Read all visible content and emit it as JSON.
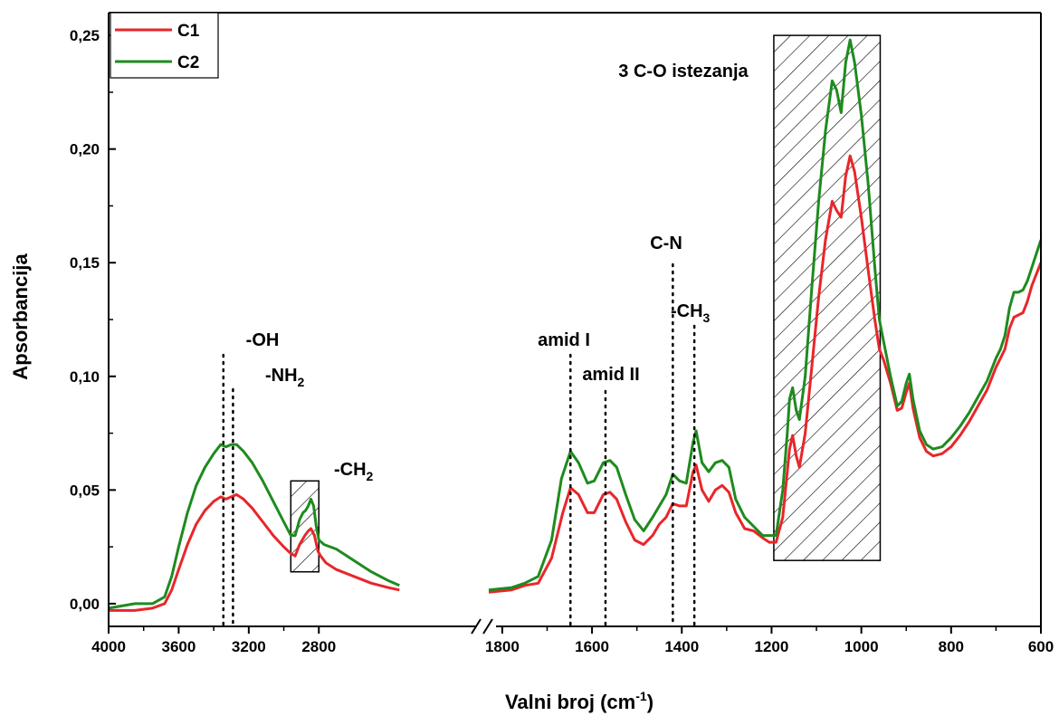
{
  "chart_data": {
    "type": "line",
    "title": "",
    "xlabel": "Valni broj (cm",
    "xlabel_sup": "-1",
    "xlabel_close": ")",
    "ylabel": "Apsorbancija",
    "x_reversed": true,
    "broken_x_axis": true,
    "xlim_segments": [
      [
        4000,
        1830
      ],
      [
        1830,
        600
      ]
    ],
    "ylim": [
      -0.01,
      0.26
    ],
    "xticks": [
      {
        "value": 4000,
        "label": "4000",
        "segment": 0
      },
      {
        "value": 3600,
        "label": "3600",
        "segment": 0
      },
      {
        "value": 3200,
        "label": "3200",
        "segment": 0
      },
      {
        "value": 2800,
        "label": "2800",
        "segment": 0
      },
      {
        "value": 1800,
        "label": "1800",
        "segment": 1
      },
      {
        "value": 1600,
        "label": "1600",
        "segment": 1
      },
      {
        "value": 1400,
        "label": "1400",
        "segment": 1
      },
      {
        "value": 1200,
        "label": "1200",
        "segment": 1
      },
      {
        "value": 1000,
        "label": "1000",
        "segment": 1
      },
      {
        "value": 800,
        "label": "800",
        "segment": 1
      },
      {
        "value": 600,
        "label": "600",
        "segment": 1
      }
    ],
    "yticks": [
      {
        "value": 0.0,
        "label": "0,00"
      },
      {
        "value": 0.05,
        "label": "0,05"
      },
      {
        "value": 0.1,
        "label": "0,10"
      },
      {
        "value": 0.15,
        "label": "0,15"
      },
      {
        "value": 0.2,
        "label": "0,20"
      },
      {
        "value": 0.25,
        "label": "0,25"
      }
    ],
    "grid": false,
    "legend_position": "top-left",
    "series": [
      {
        "name": "C1",
        "color": "#e8262a",
        "segments": [
          [
            [
              4000,
              -0.003
            ],
            [
              3850,
              -0.003
            ],
            [
              3750,
              -0.002
            ],
            [
              3680,
              0.0
            ],
            [
              3640,
              0.006
            ],
            [
              3600,
              0.015
            ],
            [
              3550,
              0.026
            ],
            [
              3500,
              0.035
            ],
            [
              3450,
              0.041
            ],
            [
              3400,
              0.045
            ],
            [
              3360,
              0.047
            ],
            [
              3330,
              0.046
            ],
            [
              3300,
              0.047
            ],
            [
              3270,
              0.048
            ],
            [
              3230,
              0.046
            ],
            [
              3180,
              0.042
            ],
            [
              3120,
              0.036
            ],
            [
              3060,
              0.03
            ],
            [
              3000,
              0.025
            ],
            [
              2960,
              0.022
            ],
            [
              2935,
              0.021
            ],
            [
              2910,
              0.026
            ],
            [
              2880,
              0.03
            ],
            [
              2860,
              0.032
            ],
            [
              2845,
              0.033
            ],
            [
              2825,
              0.03
            ],
            [
              2805,
              0.023
            ],
            [
              2790,
              0.021
            ],
            [
              2760,
              0.018
            ],
            [
              2700,
              0.015
            ],
            [
              2600,
              0.012
            ],
            [
              2500,
              0.009
            ],
            [
              2400,
              0.007
            ],
            [
              2340,
              0.006
            ]
          ],
          [
            [
              1830,
              0.005
            ],
            [
              1780,
              0.006
            ],
            [
              1750,
              0.008
            ],
            [
              1720,
              0.009
            ],
            [
              1690,
              0.02
            ],
            [
              1665,
              0.04
            ],
            [
              1648,
              0.051
            ],
            [
              1630,
              0.048
            ],
            [
              1610,
              0.04
            ],
            [
              1595,
              0.04
            ],
            [
              1575,
              0.048
            ],
            [
              1560,
              0.049
            ],
            [
              1545,
              0.046
            ],
            [
              1525,
              0.036
            ],
            [
              1505,
              0.028
            ],
            [
              1485,
              0.026
            ],
            [
              1465,
              0.03
            ],
            [
              1450,
              0.035
            ],
            [
              1435,
              0.038
            ],
            [
              1420,
              0.044
            ],
            [
              1405,
              0.043
            ],
            [
              1390,
              0.043
            ],
            [
              1375,
              0.058
            ],
            [
              1368,
              0.061
            ],
            [
              1355,
              0.05
            ],
            [
              1340,
              0.045
            ],
            [
              1325,
              0.05
            ],
            [
              1310,
              0.052
            ],
            [
              1295,
              0.049
            ],
            [
              1280,
              0.04
            ],
            [
              1260,
              0.033
            ],
            [
              1240,
              0.032
            ],
            [
              1220,
              0.029
            ],
            [
              1205,
              0.027
            ],
            [
              1190,
              0.027
            ],
            [
              1175,
              0.038
            ],
            [
              1165,
              0.058
            ],
            [
              1160,
              0.068
            ],
            [
              1153,
              0.074
            ],
            [
              1145,
              0.065
            ],
            [
              1138,
              0.06
            ],
            [
              1125,
              0.075
            ],
            [
              1110,
              0.105
            ],
            [
              1095,
              0.135
            ],
            [
              1080,
              0.16
            ],
            [
              1065,
              0.177
            ],
            [
              1055,
              0.173
            ],
            [
              1045,
              0.17
            ],
            [
              1035,
              0.188
            ],
            [
              1025,
              0.197
            ],
            [
              1015,
              0.19
            ],
            [
              1000,
              0.17
            ],
            [
              985,
              0.147
            ],
            [
              970,
              0.125
            ],
            [
              960,
              0.112
            ],
            [
              950,
              0.107
            ],
            [
              935,
              0.097
            ],
            [
              920,
              0.085
            ],
            [
              910,
              0.086
            ],
            [
              900,
              0.093
            ],
            [
              893,
              0.097
            ],
            [
              885,
              0.086
            ],
            [
              870,
              0.073
            ],
            [
              855,
              0.067
            ],
            [
              840,
              0.065
            ],
            [
              820,
              0.066
            ],
            [
              800,
              0.069
            ],
            [
              780,
              0.074
            ],
            [
              760,
              0.08
            ],
            [
              740,
              0.087
            ],
            [
              720,
              0.094
            ],
            [
              700,
              0.104
            ],
            [
              690,
              0.108
            ],
            [
              680,
              0.112
            ],
            [
              670,
              0.121
            ],
            [
              660,
              0.126
            ],
            [
              650,
              0.127
            ],
            [
              640,
              0.128
            ],
            [
              630,
              0.133
            ],
            [
              620,
              0.14
            ],
            [
              610,
              0.145
            ],
            [
              600,
              0.15
            ]
          ]
        ]
      },
      {
        "name": "C2",
        "color": "#1e8b1e",
        "segments": [
          [
            [
              4000,
              -0.002
            ],
            [
              3850,
              0.0
            ],
            [
              3750,
              0.0
            ],
            [
              3680,
              0.003
            ],
            [
              3640,
              0.012
            ],
            [
              3600,
              0.025
            ],
            [
              3550,
              0.04
            ],
            [
              3500,
              0.052
            ],
            [
              3450,
              0.06
            ],
            [
              3400,
              0.066
            ],
            [
              3360,
              0.07
            ],
            [
              3330,
              0.069
            ],
            [
              3300,
              0.07
            ],
            [
              3270,
              0.07
            ],
            [
              3230,
              0.067
            ],
            [
              3180,
              0.062
            ],
            [
              3120,
              0.054
            ],
            [
              3060,
              0.045
            ],
            [
              3000,
              0.036
            ],
            [
              2960,
              0.03
            ],
            [
              2935,
              0.03
            ],
            [
              2910,
              0.037
            ],
            [
              2890,
              0.04
            ],
            [
              2875,
              0.041
            ],
            [
              2860,
              0.043
            ],
            [
              2845,
              0.046
            ],
            [
              2830,
              0.043
            ],
            [
              2815,
              0.034
            ],
            [
              2800,
              0.028
            ],
            [
              2770,
              0.026
            ],
            [
              2700,
              0.024
            ],
            [
              2600,
              0.019
            ],
            [
              2500,
              0.014
            ],
            [
              2400,
              0.01
            ],
            [
              2340,
              0.008
            ]
          ],
          [
            [
              1830,
              0.006
            ],
            [
              1780,
              0.007
            ],
            [
              1750,
              0.009
            ],
            [
              1720,
              0.012
            ],
            [
              1690,
              0.028
            ],
            [
              1668,
              0.055
            ],
            [
              1648,
              0.067
            ],
            [
              1630,
              0.062
            ],
            [
              1610,
              0.053
            ],
            [
              1595,
              0.054
            ],
            [
              1575,
              0.062
            ],
            [
              1560,
              0.063
            ],
            [
              1545,
              0.06
            ],
            [
              1525,
              0.048
            ],
            [
              1505,
              0.037
            ],
            [
              1485,
              0.032
            ],
            [
              1465,
              0.038
            ],
            [
              1450,
              0.043
            ],
            [
              1435,
              0.048
            ],
            [
              1420,
              0.057
            ],
            [
              1405,
              0.054
            ],
            [
              1390,
              0.053
            ],
            [
              1375,
              0.071
            ],
            [
              1368,
              0.076
            ],
            [
              1355,
              0.062
            ],
            [
              1340,
              0.058
            ],
            [
              1325,
              0.062
            ],
            [
              1310,
              0.063
            ],
            [
              1295,
              0.06
            ],
            [
              1280,
              0.046
            ],
            [
              1260,
              0.038
            ],
            [
              1240,
              0.034
            ],
            [
              1220,
              0.03
            ],
            [
              1205,
              0.03
            ],
            [
              1190,
              0.03
            ],
            [
              1175,
              0.05
            ],
            [
              1165,
              0.075
            ],
            [
              1160,
              0.09
            ],
            [
              1153,
              0.095
            ],
            [
              1145,
              0.085
            ],
            [
              1138,
              0.081
            ],
            [
              1125,
              0.1
            ],
            [
              1110,
              0.14
            ],
            [
              1095,
              0.177
            ],
            [
              1080,
              0.208
            ],
            [
              1065,
              0.23
            ],
            [
              1055,
              0.226
            ],
            [
              1045,
              0.216
            ],
            [
              1035,
              0.238
            ],
            [
              1025,
              0.248
            ],
            [
              1015,
              0.238
            ],
            [
              1000,
              0.215
            ],
            [
              985,
              0.185
            ],
            [
              970,
              0.148
            ],
            [
              960,
              0.125
            ],
            [
              950,
              0.115
            ],
            [
              935,
              0.1
            ],
            [
              920,
              0.087
            ],
            [
              910,
              0.089
            ],
            [
              900,
              0.097
            ],
            [
              893,
              0.101
            ],
            [
              885,
              0.09
            ],
            [
              870,
              0.076
            ],
            [
              855,
              0.07
            ],
            [
              840,
              0.068
            ],
            [
              820,
              0.069
            ],
            [
              800,
              0.073
            ],
            [
              780,
              0.078
            ],
            [
              760,
              0.084
            ],
            [
              740,
              0.091
            ],
            [
              720,
              0.098
            ],
            [
              700,
              0.108
            ],
            [
              690,
              0.112
            ],
            [
              680,
              0.118
            ],
            [
              670,
              0.13
            ],
            [
              660,
              0.137
            ],
            [
              650,
              0.137
            ],
            [
              640,
              0.138
            ],
            [
              630,
              0.142
            ],
            [
              620,
              0.148
            ],
            [
              610,
              0.154
            ],
            [
              600,
              0.16
            ]
          ]
        ]
      }
    ],
    "annotations": [
      {
        "label": "-OH",
        "x": 3345
      },
      {
        "label": "-NH",
        "subscript": "2",
        "x": 3290
      },
      {
        "label": "-CH",
        "subscript": "2"
      },
      {
        "label": "amid I",
        "x": 1648
      },
      {
        "label": "amid II",
        "x": 1570
      },
      {
        "label": "C-N",
        "x": 1420
      },
      {
        "label": "-CH",
        "subscript": "3",
        "x": 1372
      },
      {
        "label": "3 C-O istezanja"
      }
    ],
    "hatched_regions": [
      {
        "x_range": [
          2960,
          2800
        ],
        "y_range": [
          0.014,
          0.054
        ]
      },
      {
        "x_range": [
          1195,
          958
        ],
        "y_range": [
          0.019,
          0.25
        ]
      }
    ]
  }
}
